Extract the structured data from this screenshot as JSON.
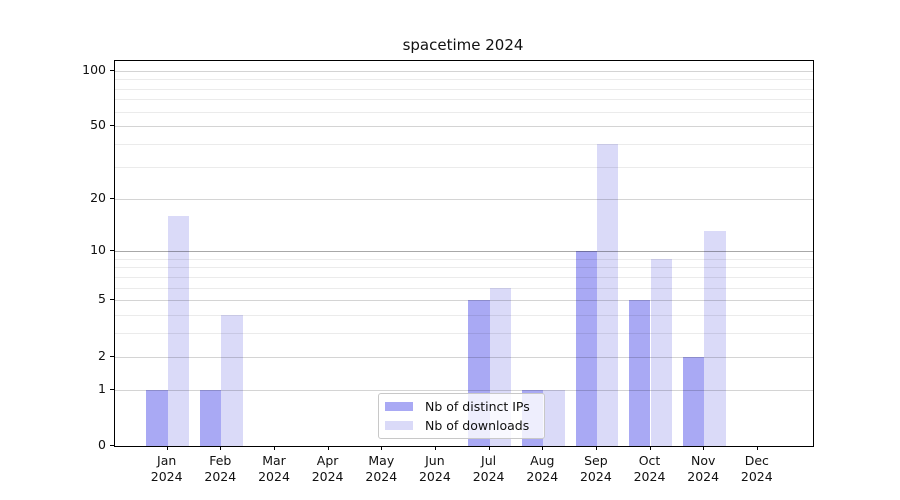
{
  "title": "spacetime 2024",
  "axes": {
    "y_tick_labels": [
      "0",
      "1",
      "2",
      "5",
      "10",
      "20",
      "50",
      "100"
    ],
    "x_tick_months": [
      "Jan",
      "Feb",
      "Mar",
      "Apr",
      "May",
      "Jun",
      "Jul",
      "Aug",
      "Sep",
      "Oct",
      "Nov",
      "Dec"
    ],
    "x_tick_year": "2024"
  },
  "legend": {
    "items": [
      {
        "label": "Nb of distinct IPs",
        "color": "#a9a9f4"
      },
      {
        "label": "Nb of downloads",
        "color": "#dadaf8"
      }
    ]
  },
  "chart_data": {
    "type": "bar",
    "title": "spacetime 2024",
    "categories": [
      "Jan 2024",
      "Feb 2024",
      "Mar 2024",
      "Apr 2024",
      "May 2024",
      "Jun 2024",
      "Jul 2024",
      "Aug 2024",
      "Sep 2024",
      "Oct 2024",
      "Nov 2024",
      "Dec 2024"
    ],
    "series": [
      {
        "name": "Nb of distinct IPs",
        "color": "#a9a9f4",
        "values": [
          1,
          1,
          0,
          0,
          0,
          0,
          5,
          1,
          10,
          5,
          2,
          0
        ]
      },
      {
        "name": "Nb of downloads",
        "color": "#dadaf8",
        "values": [
          16,
          4,
          0,
          0,
          0,
          0,
          6,
          1,
          40,
          9,
          13,
          0
        ]
      }
    ],
    "xlabel": "",
    "ylabel": "",
    "yscale": "log1p",
    "y_major_ticks": [
      0,
      1,
      2,
      5,
      10,
      20,
      50,
      100
    ],
    "y_minor_ticks": [
      3,
      4,
      6,
      7,
      8,
      9,
      30,
      40,
      60,
      70,
      80,
      90
    ],
    "ylim": [
      0,
      115
    ],
    "grid": "major+minor, drawn above bars",
    "legend_position": "lower center"
  }
}
